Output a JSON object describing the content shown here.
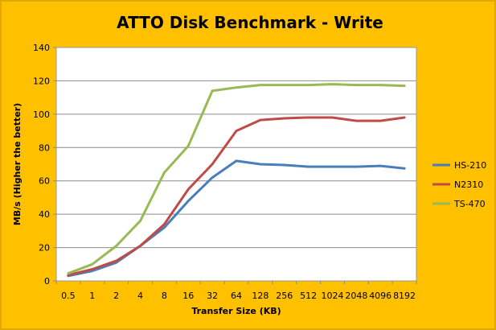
{
  "chart_data": {
    "type": "line",
    "title": "ATTO Disk Benchmark - Write",
    "xlabel": "Transfer Size (KB)",
    "ylabel": "MB/s (Higher the better)",
    "categories": [
      "0.5",
      "1",
      "2",
      "4",
      "8",
      "16",
      "32",
      "64",
      "128",
      "256",
      "512",
      "1024",
      "2048",
      "4096",
      "8192"
    ],
    "ylim": [
      0,
      140
    ],
    "yticks": [
      "0",
      "20",
      "40",
      "60",
      "80",
      "100",
      "120",
      "140"
    ],
    "grid": true,
    "legend_position": "right",
    "series": [
      {
        "name": "HS-210",
        "color": "#4a7ebb",
        "values": [
          3,
          6,
          11,
          21,
          32,
          48,
          62,
          72,
          70,
          69.5,
          68.5,
          68.5,
          68.5,
          69,
          67.5
        ]
      },
      {
        "name": "N2310",
        "color": "#be4b48",
        "values": [
          3.5,
          7,
          12,
          21,
          34,
          55,
          70,
          90,
          96.5,
          97.5,
          98,
          98,
          96,
          96,
          98
        ]
      },
      {
        "name": "TS-470",
        "color": "#98b954",
        "values": [
          4.5,
          10,
          21,
          36,
          65,
          81,
          114,
          116,
          117.5,
          117.5,
          117.5,
          118,
          117.5,
          117.5,
          117
        ]
      }
    ]
  }
}
